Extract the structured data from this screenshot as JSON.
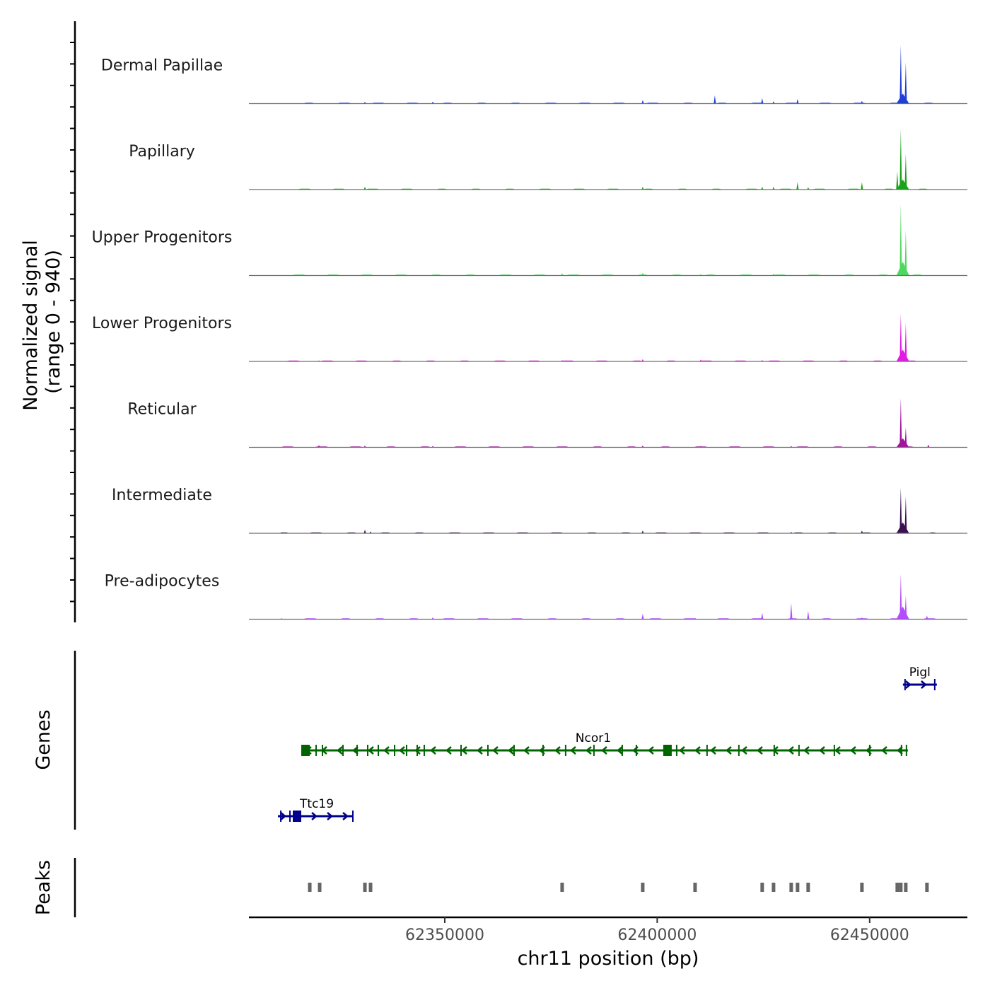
{
  "chart_data": {
    "type": "area",
    "title": "",
    "ylabel_line1": "Normalized signal",
    "ylabel_line2": "(range 0 - 940)",
    "ylim": [
      0,
      940
    ],
    "xlabel": "chr11 position (bp)",
    "xlim": [
      62303900,
      62473000
    ],
    "xticks": [
      62350000,
      62400000,
      62450000
    ],
    "xtick_labels": [
      "62350000",
      "62400000",
      "62450000"
    ],
    "tracks": [
      {
        "name": "Dermal Papillae",
        "color": "#1f3fd6",
        "peaks": [
          [
            62331200,
            20
          ],
          [
            62347170,
            22
          ],
          [
            62396590,
            40
          ],
          [
            62413560,
            90
          ],
          [
            62424710,
            60
          ],
          [
            62427380,
            25
          ],
          [
            62433030,
            50
          ],
          [
            62448180,
            30
          ],
          [
            62457800,
            110,
            3000
          ],
          [
            62457330,
            640
          ],
          [
            62458500,
            450
          ]
        ]
      },
      {
        "name": "Papillary",
        "color": "#1aa31a",
        "peaks": [
          [
            62331200,
            30
          ],
          [
            62396590,
            30
          ],
          [
            62424710,
            30
          ],
          [
            62427380,
            30
          ],
          [
            62433030,
            80
          ],
          [
            62435530,
            25
          ],
          [
            62448180,
            80
          ],
          [
            62457800,
            110,
            3000
          ],
          [
            62456500,
            200
          ],
          [
            62457330,
            660
          ],
          [
            62458500,
            390
          ]
        ]
      },
      {
        "name": "Upper Progenitors",
        "color": "#4fd860",
        "peaks": [
          [
            62377620,
            25
          ],
          [
            62396590,
            30
          ],
          [
            62410240,
            15
          ],
          [
            62427380,
            20
          ],
          [
            62457800,
            150,
            3000
          ],
          [
            62457330,
            780
          ],
          [
            62458500,
            500
          ]
        ]
      },
      {
        "name": "Lower Progenitors",
        "color": "#e31ae3",
        "peaks": [
          [
            62320380,
            12
          ],
          [
            62377620,
            15
          ],
          [
            62396590,
            25
          ],
          [
            62410240,
            20
          ],
          [
            62424710,
            15
          ],
          [
            62457800,
            130,
            3000
          ],
          [
            62457330,
            520
          ],
          [
            62458500,
            420
          ]
        ]
      },
      {
        "name": "Reticular",
        "color": "#a0169a",
        "peaks": [
          [
            62320380,
            25
          ],
          [
            62331200,
            20
          ],
          [
            62347170,
            15
          ],
          [
            62396590,
            20
          ],
          [
            62410240,
            15
          ],
          [
            62431540,
            15
          ],
          [
            62457800,
            100,
            3000
          ],
          [
            62457330,
            540
          ],
          [
            62458500,
            220
          ],
          [
            62463820,
            30
          ]
        ]
      },
      {
        "name": "Intermediate",
        "color": "#3a1050",
        "peaks": [
          [
            62331200,
            40
          ],
          [
            62332530,
            20
          ],
          [
            62396590,
            30
          ],
          [
            62410240,
            10
          ],
          [
            62431540,
            15
          ],
          [
            62448180,
            30
          ],
          [
            62457800,
            120,
            3000
          ],
          [
            62457330,
            500
          ],
          [
            62458500,
            400
          ]
        ]
      },
      {
        "name": "Pre-adipocytes",
        "color": "#b44dff",
        "peaks": [
          [
            62347170,
            20
          ],
          [
            62396590,
            60
          ],
          [
            62408910,
            15
          ],
          [
            62424710,
            70
          ],
          [
            62431540,
            180
          ],
          [
            62435530,
            90
          ],
          [
            62448180,
            20
          ],
          [
            62457800,
            140,
            3000
          ],
          [
            62457330,
            500
          ],
          [
            62458500,
            260
          ],
          [
            62463490,
            40
          ]
        ]
      }
    ],
    "genes_label": "Genes",
    "genes": [
      {
        "name": "Ttc19",
        "strand": "+",
        "color": "#00008b",
        "start": 62310730,
        "end": 62328370,
        "row": 3,
        "exons": [
          62311400,
          62313560,
          62315220,
          62328370
        ],
        "big_exons": [
          62315220
        ]
      },
      {
        "name": "Ncor1",
        "strand": "-",
        "color": "#006400",
        "start": 62316550,
        "end": 62459000,
        "row": 2,
        "exons": [
          62317220,
          62319715,
          62321210,
          62326040,
          62329370,
          62331860,
          62334360,
          62338190,
          62341010,
          62343510,
          62345170,
          62353830,
          62360150,
          62366310,
          62373130,
          62378450,
          62385110,
          62391770,
          62395090,
          62402420,
          62404580,
          62411730,
          62419220,
          62427540,
          62433370,
          62441690,
          62450010,
          62457490,
          62458660
        ],
        "big_exons": [
          62317220,
          62402420
        ]
      },
      {
        "name": "Pigl",
        "strand": "+",
        "color": "#00008b",
        "start": 62457830,
        "end": 62465820,
        "row": 1,
        "exons": [
          62458330,
          62465320
        ],
        "big_exons": []
      }
    ],
    "peaks_label": "Peaks",
    "peak_regions": [
      62318220,
      62320550,
      62331200,
      62332530,
      62377620,
      62396590,
      62408910,
      62424710,
      62427380,
      62431540,
      62433030,
      62435530,
      62448180,
      62456500,
      62457330,
      62458500,
      62463490
    ],
    "peak_color": "#666666"
  }
}
